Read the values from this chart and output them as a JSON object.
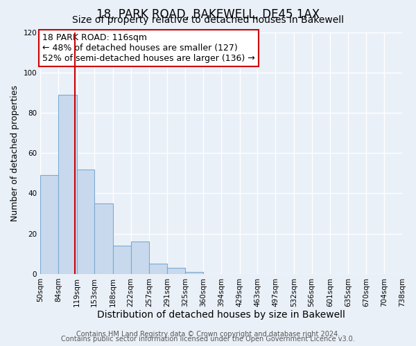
{
  "title": "18, PARK ROAD, BAKEWELL, DE45 1AX",
  "subtitle": "Size of property relative to detached houses in Bakewell",
  "xlabel": "Distribution of detached houses by size in Bakewell",
  "ylabel": "Number of detached properties",
  "bin_edges": [
    50,
    84,
    119,
    153,
    188,
    222,
    257,
    291,
    325,
    360,
    394,
    429,
    463,
    497,
    532,
    566,
    601,
    635,
    670,
    704,
    738
  ],
  "bin_labels": [
    "50sqm",
    "84sqm",
    "119sqm",
    "153sqm",
    "188sqm",
    "222sqm",
    "257sqm",
    "291sqm",
    "325sqm",
    "360sqm",
    "394sqm",
    "429sqm",
    "463sqm",
    "497sqm",
    "532sqm",
    "566sqm",
    "601sqm",
    "635sqm",
    "670sqm",
    "704sqm",
    "738sqm"
  ],
  "counts": [
    49,
    89,
    52,
    35,
    14,
    16,
    5,
    3,
    1,
    0,
    0,
    0,
    0,
    0,
    0,
    0,
    0,
    0,
    0,
    0
  ],
  "bar_color": "#c8d9ee",
  "bar_edge_color": "#7aaad0",
  "background_color": "#eaf0f8",
  "grid_color": "#ffffff",
  "vline_x": 116,
  "vline_color": "#cc0000",
  "annotation_title": "18 PARK ROAD: 116sqm",
  "annotation_line1": "← 48% of detached houses are smaller (127)",
  "annotation_line2": "52% of semi-detached houses are larger (136) →",
  "annotation_box_facecolor": "#ffffff",
  "annotation_box_edgecolor": "#cc0000",
  "ylim": [
    0,
    120
  ],
  "yticks": [
    0,
    20,
    40,
    60,
    80,
    100,
    120
  ],
  "footer1": "Contains HM Land Registry data © Crown copyright and database right 2024.",
  "footer2": "Contains public sector information licensed under the Open Government Licence v3.0.",
  "title_fontsize": 12,
  "subtitle_fontsize": 10,
  "xlabel_fontsize": 10,
  "ylabel_fontsize": 9,
  "tick_fontsize": 7.5,
  "annotation_fontsize": 9,
  "footer_fontsize": 7
}
